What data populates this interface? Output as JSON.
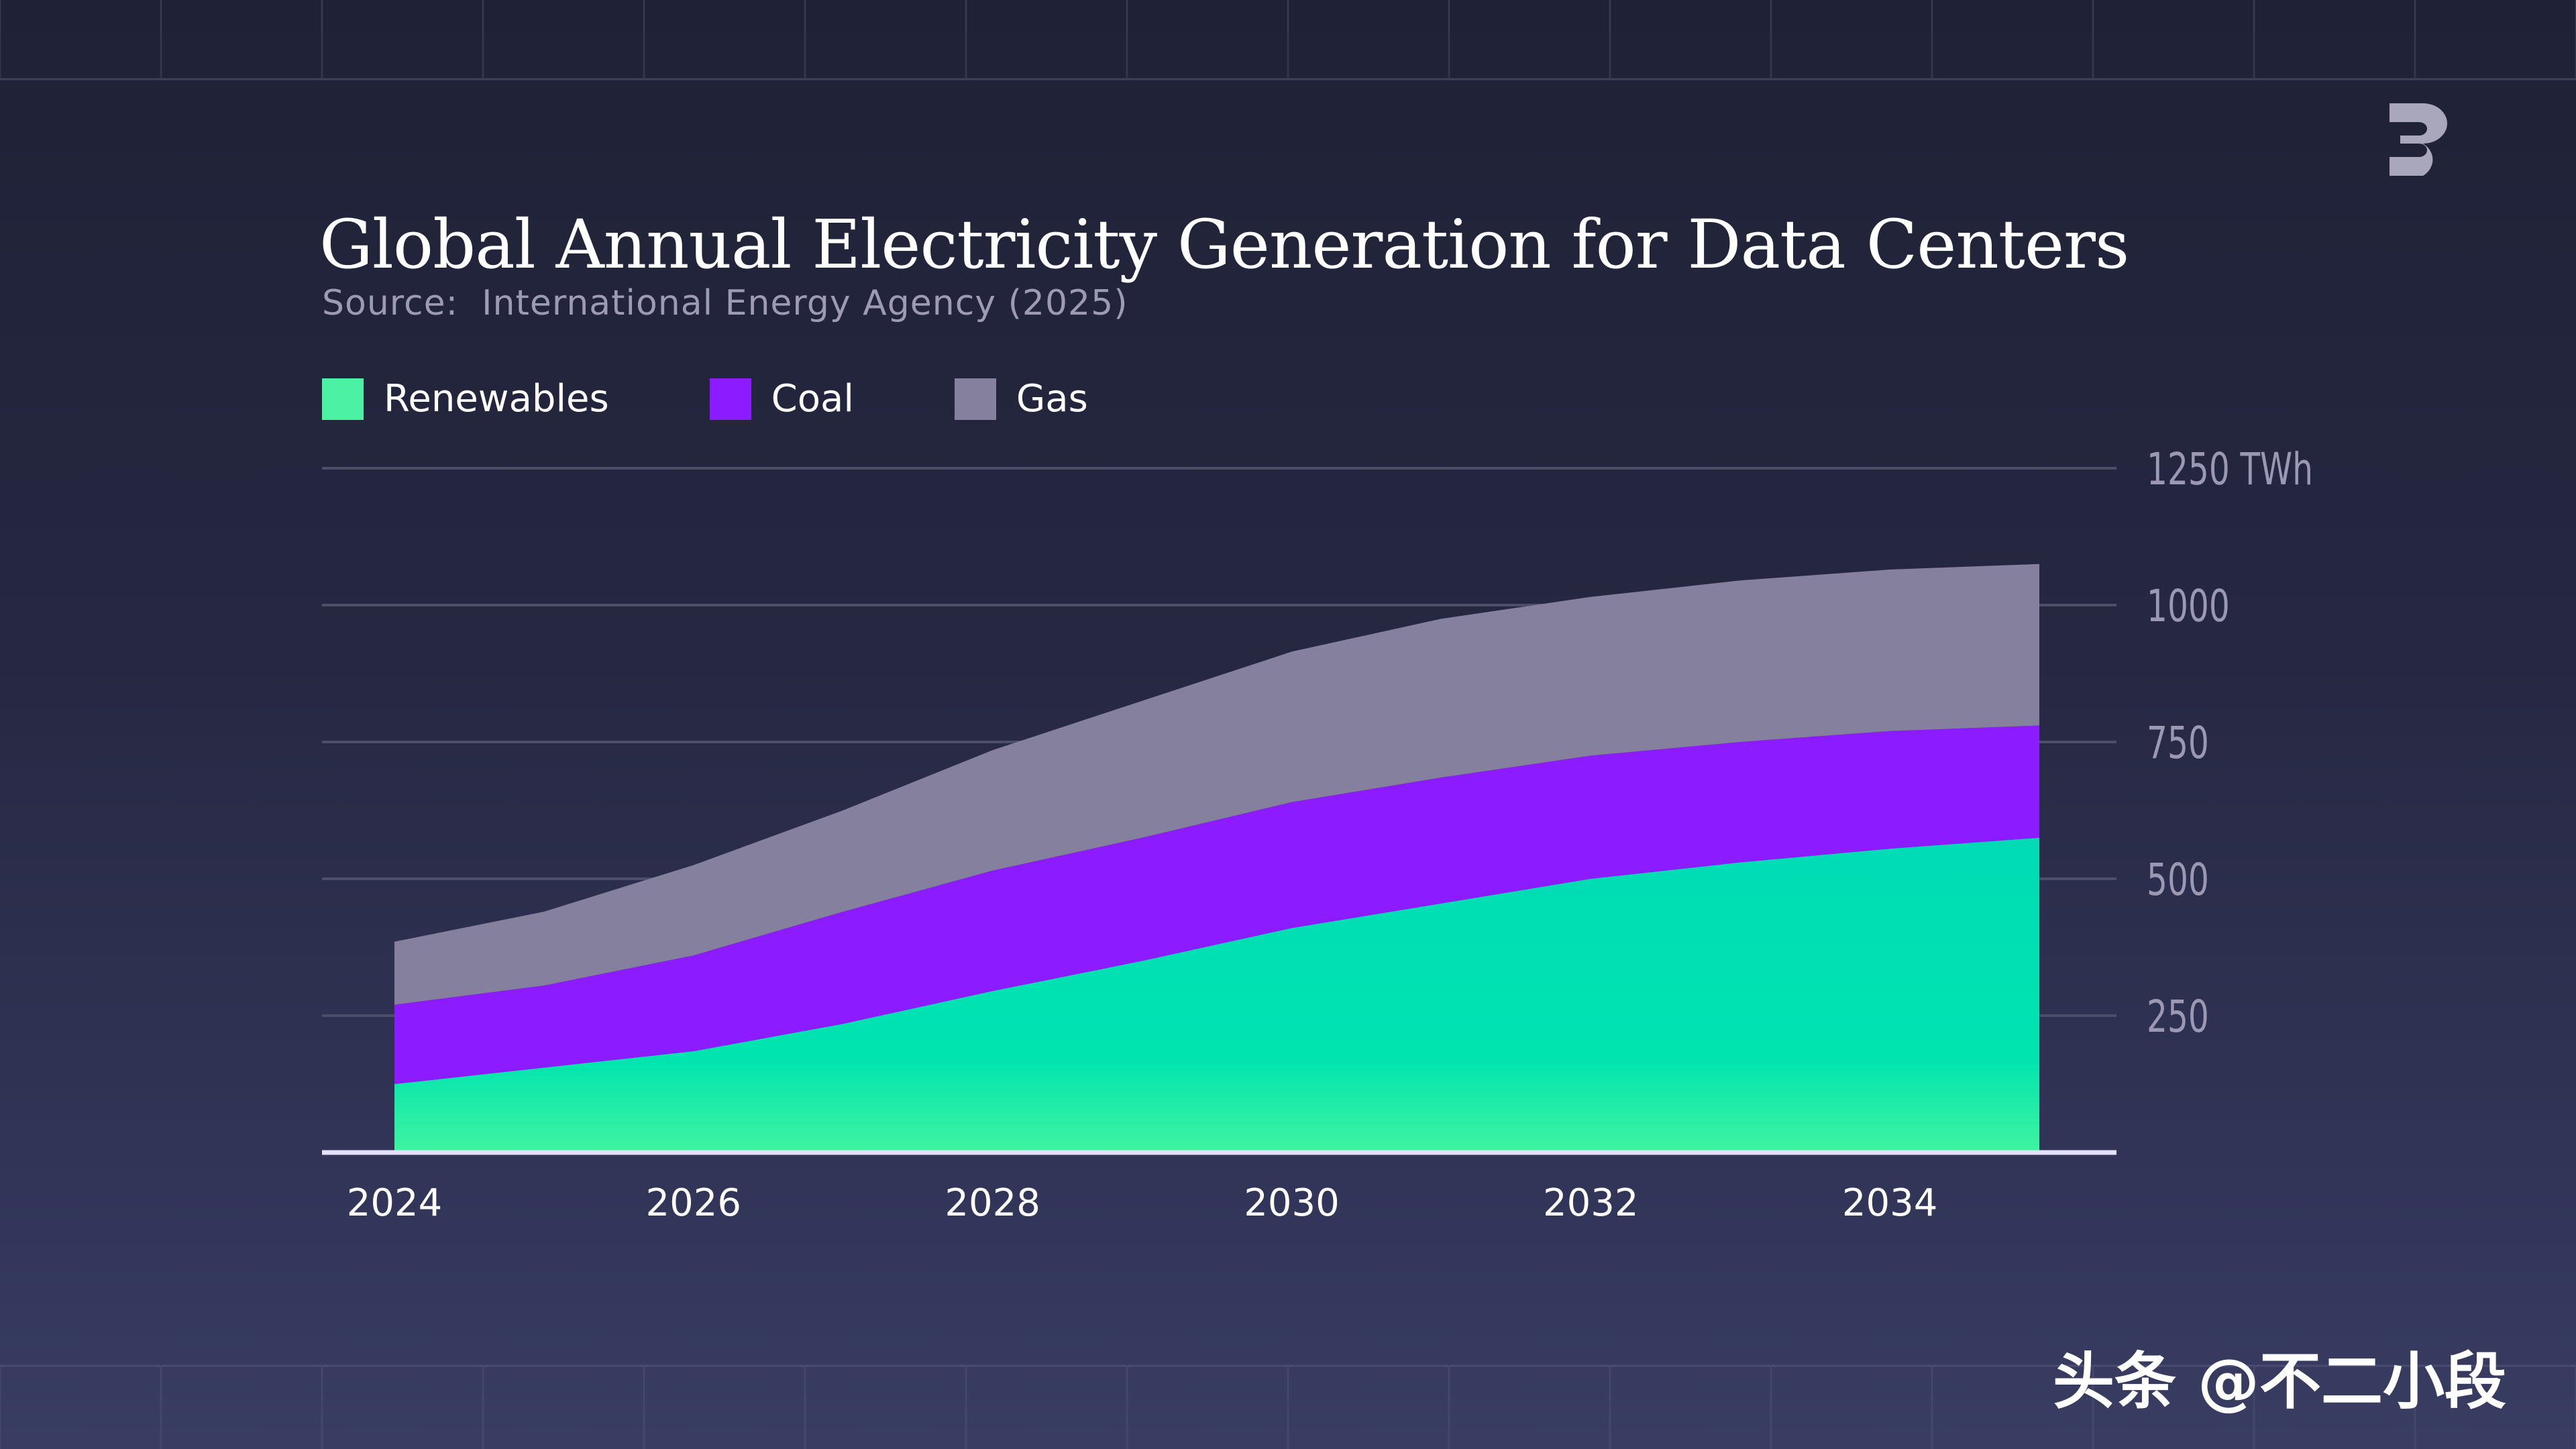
{
  "title": "Global Annual Electricity Generation for Data Centers",
  "subtitle": "Source:  International Energy Agency (2025)",
  "watermark": "头条 @不二小段",
  "legend": [
    {
      "label": "Renewables",
      "color": "#4cf2a4"
    },
    {
      "label": "Coal",
      "color": "#8c1cff"
    },
    {
      "label": "Gas",
      "color": "#84809e"
    }
  ],
  "chart_data": {
    "type": "area",
    "stacked": true,
    "x": [
      2024,
      2025,
      2026,
      2027,
      2028,
      2029,
      2030,
      2031,
      2032,
      2033,
      2034,
      2035
    ],
    "series": [
      {
        "name": "Renewables",
        "color": "#00e0b0",
        "values": [
          125,
          155,
          185,
          235,
          295,
          350,
          410,
          455,
          500,
          530,
          555,
          575
        ]
      },
      {
        "name": "Coal",
        "color": "#8c1cff",
        "values": [
          145,
          150,
          175,
          205,
          220,
          225,
          230,
          230,
          225,
          220,
          215,
          205
        ]
      },
      {
        "name": "Gas",
        "color": "#84809e",
        "values": [
          115,
          135,
          165,
          185,
          220,
          250,
          275,
          290,
          290,
          295,
          295,
          295
        ]
      }
    ],
    "x_ticks": [
      "2024",
      "2026",
      "2028",
      "2030",
      "2032",
      "2034"
    ],
    "y_ticks": [
      {
        "value": 250,
        "label": "250"
      },
      {
        "value": 500,
        "label": "500"
      },
      {
        "value": 750,
        "label": "750"
      },
      {
        "value": 1000,
        "label": "1000"
      },
      {
        "value": 1250,
        "label": "1250 TWh"
      }
    ],
    "ylim": [
      0,
      1250
    ],
    "grid": true,
    "legend_position": "top-left"
  }
}
